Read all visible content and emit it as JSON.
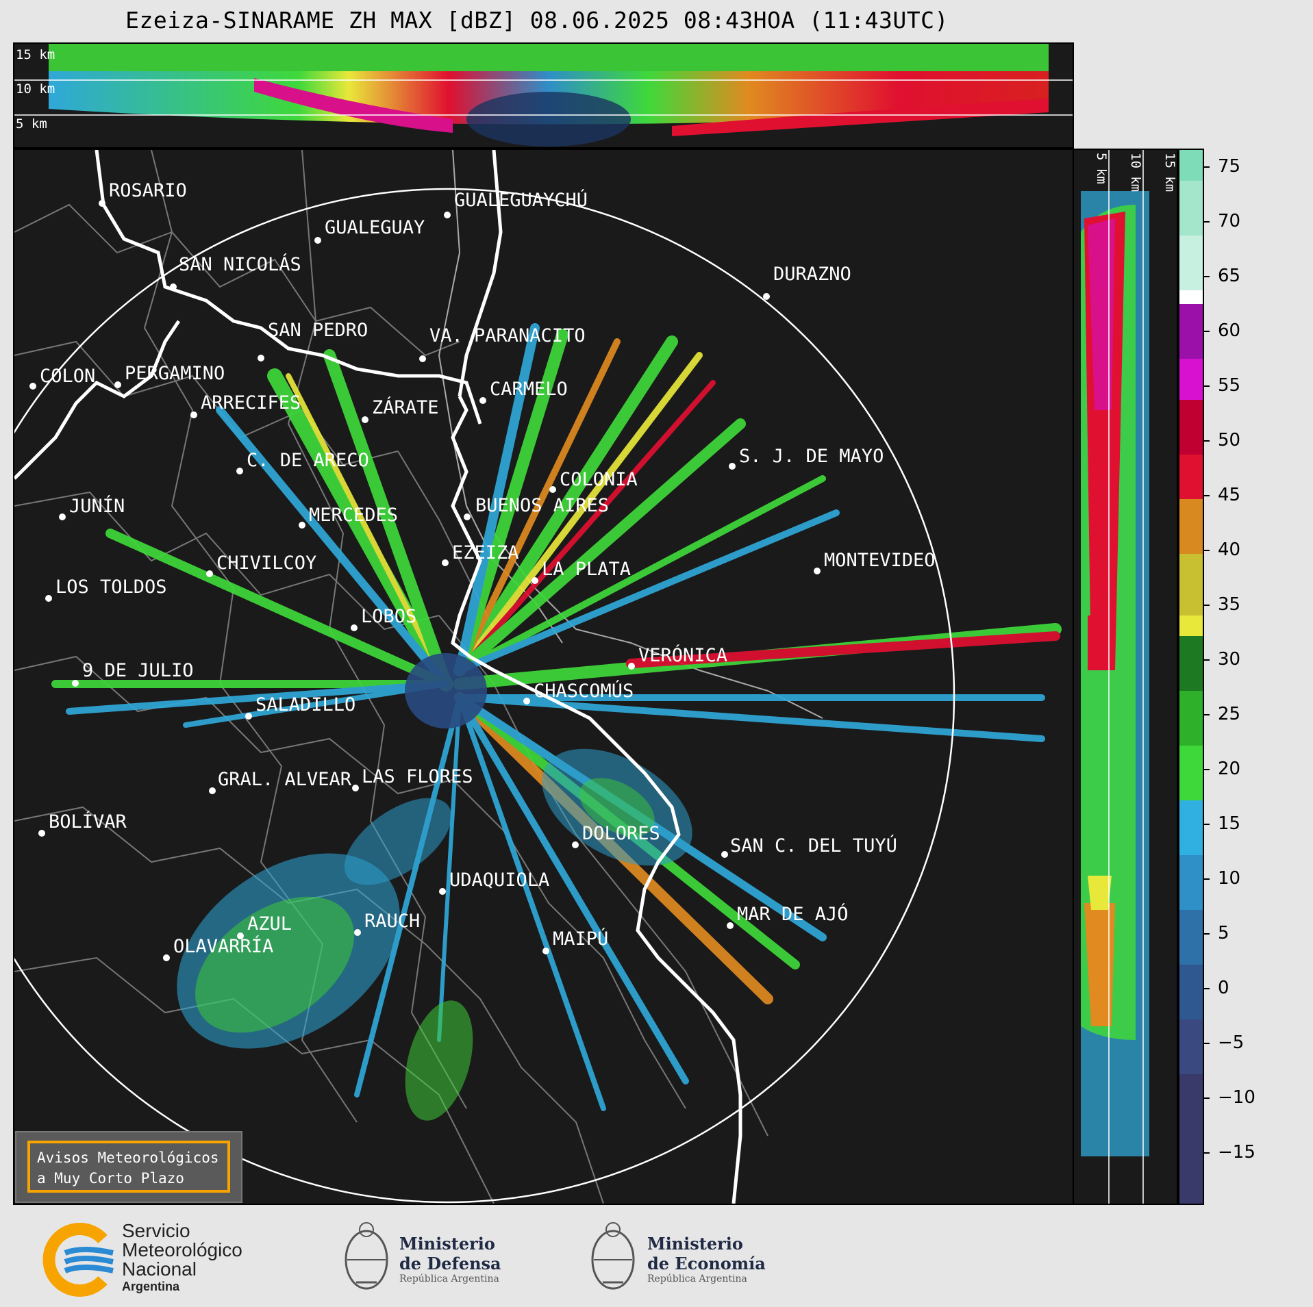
{
  "title": "Ezeiza-SINARAME ZH MAX [dBZ] 08.06.2025 08:43HOA (11:43UTC)",
  "top_panel": {
    "height_labels": [
      "15 km",
      "10 km",
      "5 km"
    ]
  },
  "right_panel": {
    "height_labels": [
      "5 km",
      "10 km",
      "15 km"
    ]
  },
  "colorbar": {
    "ticks": [
      "75",
      "70",
      "65",
      "60",
      "55",
      "50",
      "45",
      "40",
      "35",
      "30",
      "25",
      "20",
      "15",
      "10",
      "5",
      "0",
      "−5",
      "−10",
      "−15"
    ],
    "unit": "dBZ"
  },
  "cities": [
    {
      "name": "ROSARIO"
    },
    {
      "name": "GUALEGUAYCHÚ"
    },
    {
      "name": "GUALEGUAY"
    },
    {
      "name": "SAN NICOLÁS"
    },
    {
      "name": "DURAZNO"
    },
    {
      "name": "SAN PEDRO"
    },
    {
      "name": "VA. PARANACITO"
    },
    {
      "name": "COLON"
    },
    {
      "name": "PERGAMINO"
    },
    {
      "name": "CARMELO"
    },
    {
      "name": "ARRECIFES"
    },
    {
      "name": "ZÁRATE"
    },
    {
      "name": "S. J. DE MAYO"
    },
    {
      "name": "C. DE ARECO"
    },
    {
      "name": "COLONIA"
    },
    {
      "name": "JUNÍN"
    },
    {
      "name": "BUENOS AIRES"
    },
    {
      "name": "MERCEDES"
    },
    {
      "name": "EZEIZA"
    },
    {
      "name": "CHIVILCOY"
    },
    {
      "name": "LA PLATA"
    },
    {
      "name": "MONTEVIDEO"
    },
    {
      "name": "LOS TOLDOS"
    },
    {
      "name": "LOBOS"
    },
    {
      "name": "VERÓNICA"
    },
    {
      "name": "9 DE JULIO"
    },
    {
      "name": "CHASCOMÚS"
    },
    {
      "name": "SALADILLO"
    },
    {
      "name": "GRAL. ALVEAR"
    },
    {
      "name": "LAS FLORES"
    },
    {
      "name": "BOLÍVAR"
    },
    {
      "name": "DOLORES"
    },
    {
      "name": "SAN C. DEL TUYÚ"
    },
    {
      "name": "UDAQUIOLA"
    },
    {
      "name": "AZUL"
    },
    {
      "name": "RAUCH"
    },
    {
      "name": "MAR DE AJÓ"
    },
    {
      "name": "OLAVARRÍA"
    },
    {
      "name": "MAIPÚ"
    }
  ],
  "avisos": {
    "line1": "Avisos Meteorológicos",
    "line2": "a Muy Corto Plazo"
  },
  "logos": {
    "smn": {
      "line1": "Servicio",
      "line2": "Meteorológico",
      "line3": "Nacional",
      "line4": "Argentina"
    },
    "defensa": {
      "line1": "Ministerio",
      "line2": "de Defensa",
      "line3": "República Argentina"
    },
    "economia": {
      "line1": "Ministerio",
      "line2": "de Economía",
      "line3": "República Argentina"
    }
  },
  "colors": {
    "background": "#1a1a1a",
    "accent": "#f7a400",
    "smn_blue": "#2a8ad4"
  }
}
